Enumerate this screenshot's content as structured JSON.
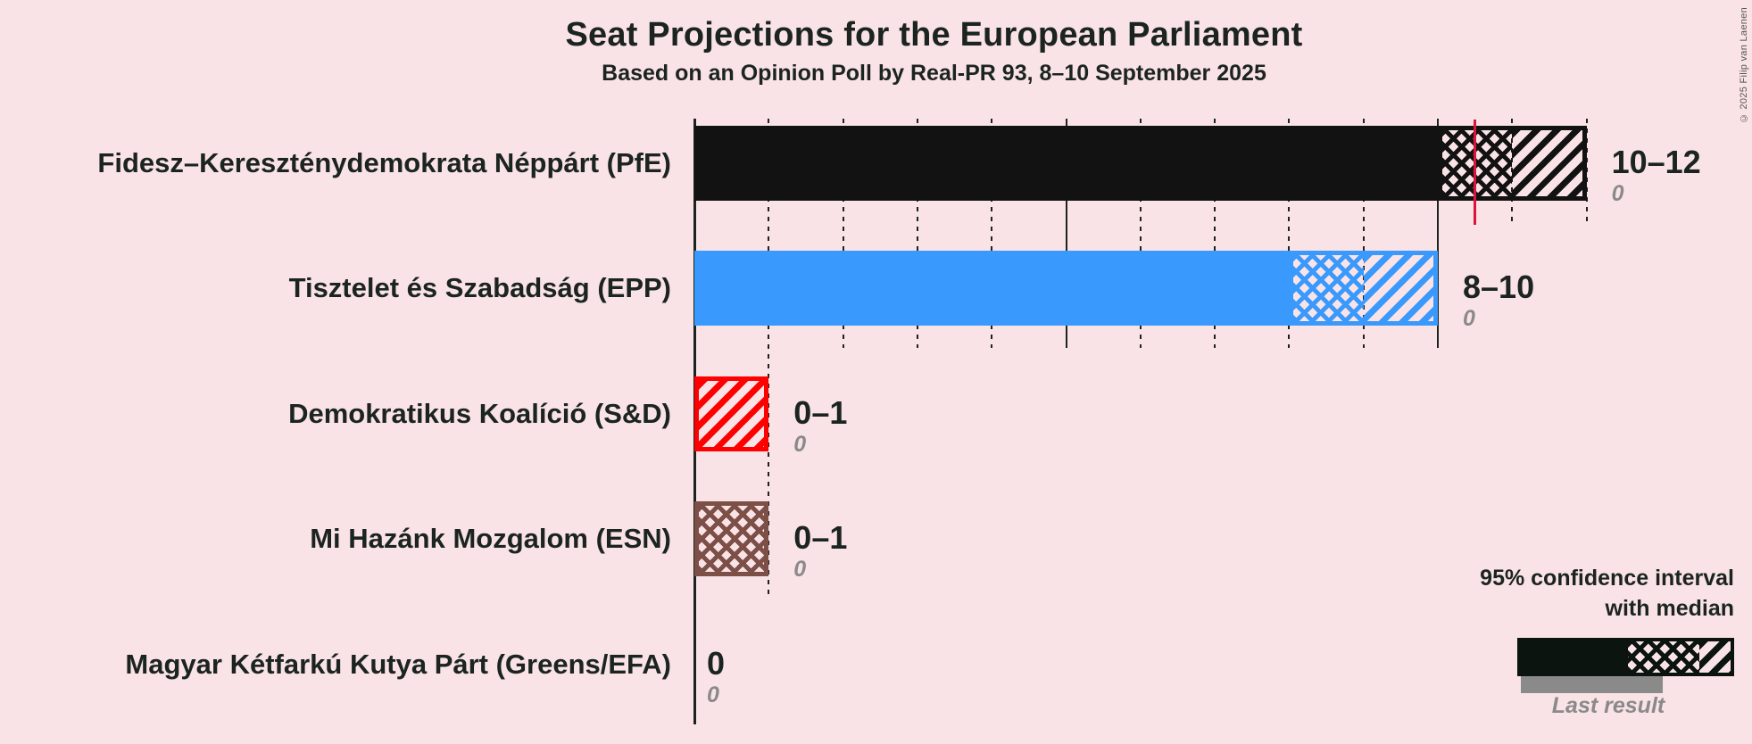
{
  "header": {
    "title": "Seat Projections for the European Parliament",
    "subtitle": "Based on an Opinion Poll by Real-PR 93, 8–10 September 2025",
    "copyright": "© 2025 Filip van Laenen"
  },
  "colors": {
    "background": "#FAE3E6",
    "text": "#1B2420",
    "last_result_gray": "#8A8A8A",
    "majority_line": "#DC143C",
    "legend_dark": "#0C140F"
  },
  "chart_data": {
    "type": "bar",
    "orientation": "horizontal",
    "unit": "seats",
    "x_axis": {
      "min": 0,
      "max": 12,
      "gridline_step": 1,
      "solid_every": 5,
      "tick_labels_shown": false
    },
    "majority_line_seats": 10.5,
    "rows": [
      {
        "party": "Fidesz–Kereszténydemokrata Néppárt (PfE)",
        "color": "#121212",
        "ci_low": 10,
        "median": 11,
        "ci_high": 12,
        "ci_label": "10–12",
        "last_result": 0,
        "last_result_label": "0"
      },
      {
        "party": "Tisztelet és Szabadság (EPP)",
        "color": "#3999FC",
        "ci_low": 8,
        "median": 9,
        "ci_high": 10,
        "ci_label": "8–10",
        "last_result": 0,
        "last_result_label": "0"
      },
      {
        "party": "Demokratikus Koalíció (S&D)",
        "color": "#FF0000",
        "ci_low": 0,
        "median": 0,
        "ci_high": 1,
        "ci_label": "0–1",
        "last_result": 0,
        "last_result_label": "0"
      },
      {
        "party": "Mi Hazánk Mozgalom (ESN)",
        "color": "#7C4F47",
        "ci_low": 0,
        "median": 1,
        "ci_high": 1,
        "ci_label": "0–1",
        "last_result": 0,
        "last_result_label": "0"
      },
      {
        "party": "Magyar Kétfarkú Kutya Párt (Greens/EFA)",
        "color": "#555555",
        "ci_low": 0,
        "median": 0,
        "ci_high": 0,
        "ci_label": "0",
        "last_result": 0,
        "last_result_label": "0"
      }
    ]
  },
  "legend": {
    "ci_label_line1": "95% confidence interval",
    "ci_label_line2": "with median",
    "last_result_label": "Last result"
  }
}
